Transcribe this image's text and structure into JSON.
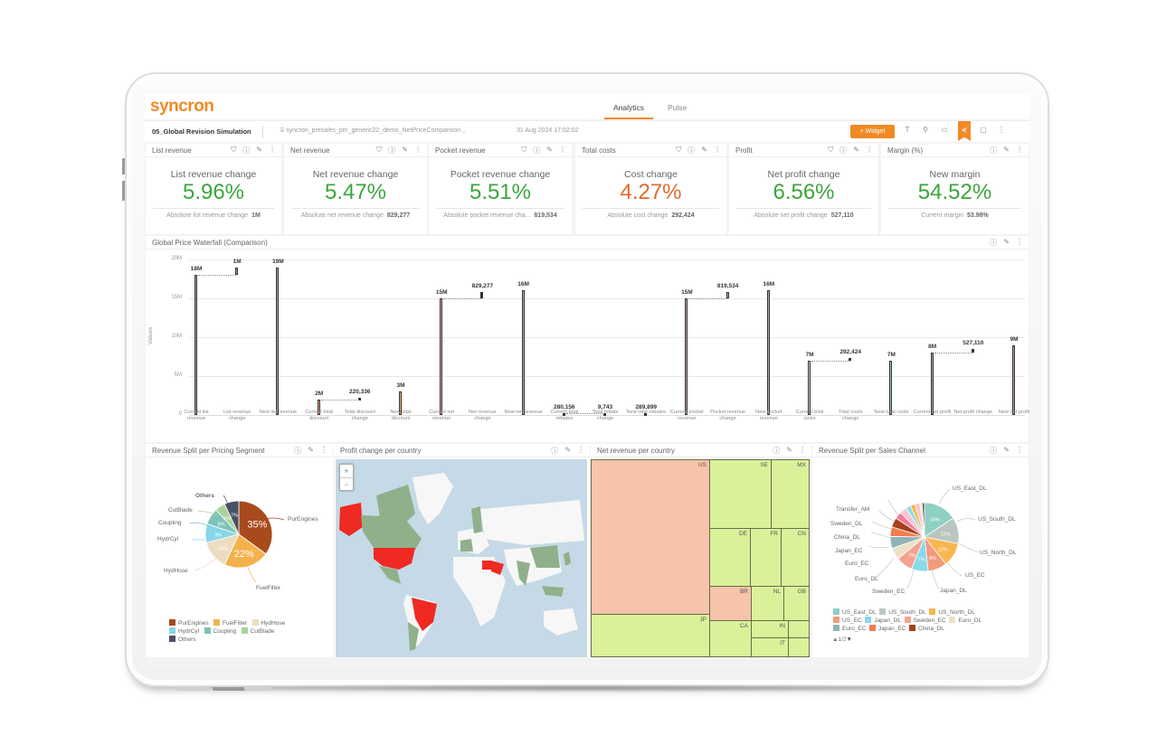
{
  "app": {
    "logo": "syncron",
    "tabs": [
      {
        "label": "Analytics",
        "active": true
      },
      {
        "label": "Pulse",
        "active": false
      }
    ],
    "dashboard_title": "05_Global Revision Simulation",
    "datasource": "syncron_presales_pm_generic22_demo_NetPriceComparison",
    "timestamp": "31 Aug 2024 17:02:02",
    "widget_button": "+ Widget",
    "accent_color": "#f08a24"
  },
  "kpis": [
    {
      "title": "List revenue",
      "label": "List revenue change",
      "value": "5.96%",
      "foot_label": "Absolute list revenue change",
      "foot_value": "1M",
      "negative": false
    },
    {
      "title": "Net revenue",
      "label": "Net revenue change",
      "value": "5.47%",
      "foot_label": "Absolute net revenue change",
      "foot_value": "829,277",
      "negative": false
    },
    {
      "title": "Pocket revenue",
      "label": "Pocket revenue change",
      "value": "5.51%",
      "foot_label": "Absolute pocket revenue cha...",
      "foot_value": "819,534",
      "negative": false
    },
    {
      "title": "Total costs",
      "label": "Cost change",
      "value": "4.27%",
      "foot_label": "Absolute cost change",
      "foot_value": "292,424",
      "negative": true
    },
    {
      "title": "Profit",
      "label": "Net profit change",
      "value": "6.56%",
      "foot_label": "Absolute net profit change",
      "foot_value": "527,110",
      "negative": false
    },
    {
      "title": "Margin (%)",
      "label": "New margin",
      "value": "54.52%",
      "foot_label": "Current margin",
      "foot_value": "53.98%",
      "negative": false
    }
  ],
  "waterfall": {
    "title": "Global Price Waterfall (Comparison)",
    "ylabel": "Values",
    "yticks": [
      "20M",
      "15M",
      "10M",
      "5M",
      "0"
    ]
  },
  "pricing_segment": {
    "title": "Revenue Split per Pricing Segment",
    "legend": [
      "PurEngines",
      "FuelFilter",
      "HydHose",
      "HydrCyl",
      "Coupling",
      "CutBlade",
      "Others"
    ]
  },
  "profit_map": {
    "title": "Profit change per country",
    "zoom_in": "+",
    "zoom_out": "−"
  },
  "treemap": {
    "title": "Net revenue per country"
  },
  "sales_channel": {
    "title": "Revenue Split per Sales Channel",
    "legend": [
      "US_East_DL",
      "US_South_DL",
      "US_North_DL",
      "US_EC",
      "Japan_DL",
      "Sweden_EC",
      "Euro_DL",
      "Euro_EC",
      "Japan_EC",
      "China_DL"
    ],
    "pager": "1/2"
  },
  "chart_data": [
    {
      "type": "bar",
      "title": "Global Price Waterfall (Comparison)",
      "xlabel": "",
      "ylabel": "Values",
      "ylim": [
        0,
        20000000
      ],
      "categories": [
        "Current list revenue",
        "List revenue change",
        "New list revenue",
        "Current total discount",
        "Total discount change",
        "New total discount",
        "Current net revenue",
        "Net revenue change",
        "New net revenue",
        "Current total rebates",
        "Total rebate change",
        "New total rebates",
        "Current pocket revenue",
        "Pocket revenue change",
        "New pocket revenue",
        "Current total costs",
        "Total costs change",
        "New total costs",
        "Current net profit",
        "Net profit change",
        "New net profit"
      ],
      "values": [
        18000000,
        1000000,
        19000000,
        2000000,
        220336,
        3000000,
        15000000,
        829277,
        16000000,
        280156,
        9743,
        289899,
        15000000,
        819534,
        16000000,
        7000000,
        292424,
        7000000,
        8000000,
        527110,
        9000000
      ],
      "data_labels": [
        "18M",
        "1M",
        "19M",
        "2M",
        "220,336",
        "3M",
        "15M",
        "829,277",
        "16M",
        "280,156",
        "9,743",
        "289,899",
        "15M",
        "819,534",
        "16M",
        "7M",
        "292,424",
        "7M",
        "8M",
        "527,110",
        "9M"
      ]
    },
    {
      "type": "pie",
      "title": "Revenue Split per Pricing Segment",
      "categories": [
        "PurEngines",
        "FuelFilter",
        "HydHose",
        "HydrCyl",
        "Coupling",
        "CutBlade",
        "Others"
      ],
      "values": [
        35,
        22,
        14,
        9,
        8,
        5,
        7
      ],
      "colors": [
        "#a84a1c",
        "#f4b24e",
        "#ecdcc0",
        "#86d6e8",
        "#7fc2b9",
        "#a8d49a",
        "#4a5064"
      ],
      "legend_position": "bottom"
    },
    {
      "type": "heatmap",
      "title": "Net revenue per country",
      "categories": [
        "US",
        "SE",
        "MX",
        "DE",
        "FR",
        "CN",
        "BR",
        "NL",
        "GB",
        "JP",
        "CA",
        "IN",
        "IT"
      ],
      "status": [
        "negative",
        "positive",
        "positive",
        "positive",
        "positive",
        "positive",
        "negative",
        "positive",
        "positive",
        "positive",
        "positive",
        "positive",
        "positive"
      ]
    },
    {
      "type": "pie",
      "title": "Revenue Split per Sales Channel",
      "categories": [
        "US_East_DL",
        "US_South_DL",
        "US_North_DL",
        "US_EC",
        "Japan_DL",
        "Sweden_EC",
        "Euro_DL",
        "Euro_EC",
        "Japan_EC",
        "China_DL",
        "Sweden_DL",
        "Transfer_AM"
      ],
      "values": [
        14,
        11,
        10,
        8,
        7,
        7,
        5,
        5,
        4,
        4,
        3,
        3
      ],
      "legend_position": "bottom"
    }
  ]
}
